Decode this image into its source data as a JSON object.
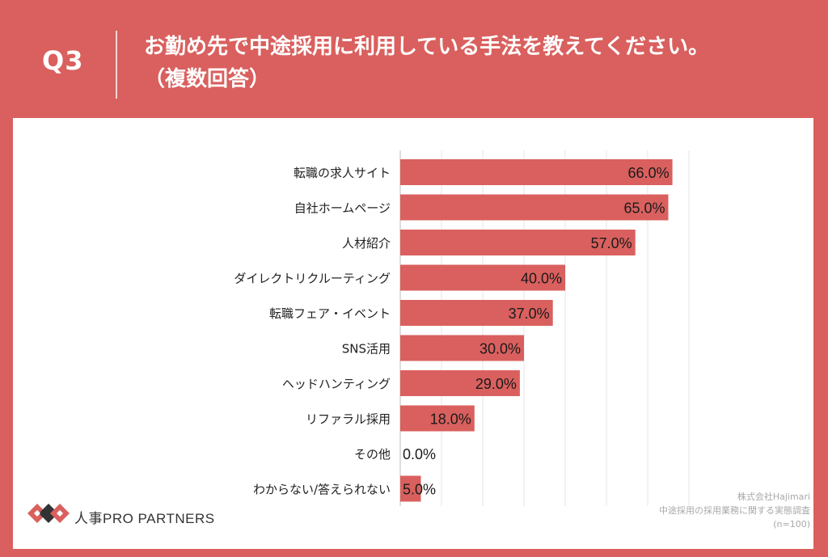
{
  "header": {
    "question_label": "Q3",
    "title_line1": "お勤め先で中途採用に利用している手法を教えてください。",
    "title_line2": "（複数回答）"
  },
  "brand": {
    "name": "人事PRO PARTNERS"
  },
  "source": {
    "company": "株式会社Hajimari",
    "survey": "中途採用の採用業務に関する実態調査",
    "n": "(n=100)"
  },
  "colors": {
    "accent": "#d9605e",
    "bar": "#d9605e"
  },
  "chart_data": {
    "type": "bar",
    "orientation": "horizontal",
    "categories": [
      "転職の求人サイト",
      "自社ホームページ",
      "人材紹介",
      "ダイレクトリクルーティング",
      "転職フェア・イベント",
      "SNS活用",
      "ヘッドハンティング",
      "リファラル採用",
      "その他",
      "わからない/答えられない"
    ],
    "values": [
      66.0,
      65.0,
      57.0,
      40.0,
      37.0,
      30.0,
      29.0,
      18.0,
      0.0,
      5.0
    ],
    "value_labels": [
      "66.0%",
      "65.0%",
      "57.0%",
      "40.0%",
      "37.0%",
      "30.0%",
      "29.0%",
      "18.0%",
      "0.0%",
      "5.0%"
    ],
    "xlim": [
      0,
      70
    ],
    "grid": true,
    "title": "",
    "xlabel": "",
    "ylabel": ""
  }
}
